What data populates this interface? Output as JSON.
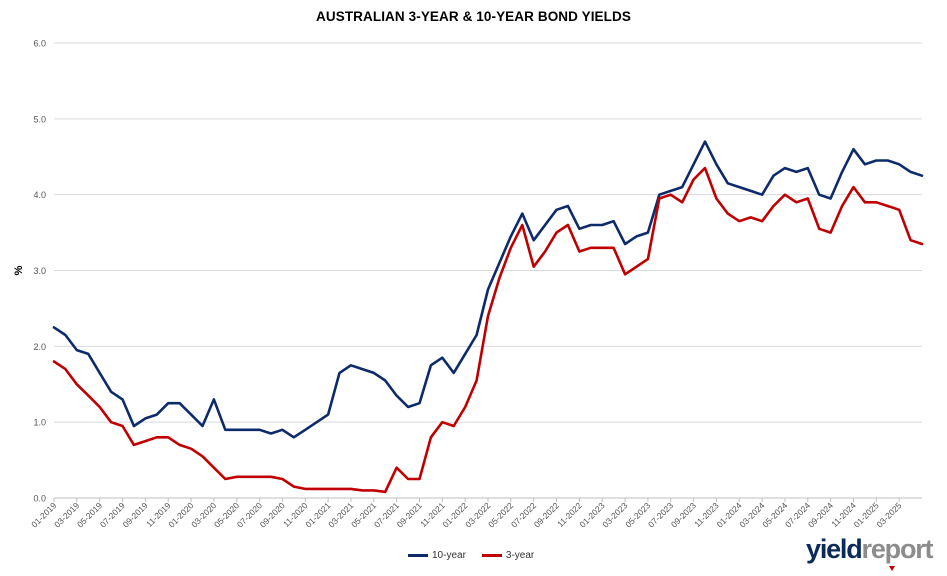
{
  "chart_data": {
    "type": "line",
    "title": "AUSTRALIAN 3-YEAR & 10-YEAR BOND YIELDS",
    "xlabel": "",
    "ylabel": "%",
    "ylim": [
      0,
      6
    ],
    "yticks": [
      "0.0",
      "1.0",
      "2.0",
      "3.0",
      "4.0",
      "5.0",
      "6.0"
    ],
    "xticks": [
      "01-2019",
      "03-2019",
      "05-2019",
      "07-2019",
      "09-2019",
      "11-2019",
      "01-2020",
      "03-2020",
      "05-2020",
      "07-2020",
      "09-2020",
      "11-2020",
      "01-2021",
      "03-2021",
      "05-2021",
      "07-2021",
      "09-2021",
      "11-2021",
      "01-2022",
      "03-2022",
      "05-2022",
      "07-2022",
      "09-2022",
      "11-2022",
      "01-2023",
      "03-2023",
      "05-2023",
      "07-2023",
      "09-2023",
      "11-2023",
      "01-2024",
      "03-2024",
      "05-2024",
      "07-2024",
      "09-2024",
      "11-2024",
      "01-2025",
      "03-2025"
    ],
    "grid": "horizontal",
    "legend_position": "bottom",
    "series": [
      {
        "name": "10-year",
        "color": "#0d2b6b",
        "x": [
          "2019-01",
          "2019-02",
          "2019-03",
          "2019-04",
          "2019-05",
          "2019-06",
          "2019-07",
          "2019-08",
          "2019-09",
          "2019-10",
          "2019-11",
          "2019-12",
          "2020-01",
          "2020-02",
          "2020-03",
          "2020-04",
          "2020-05",
          "2020-06",
          "2020-07",
          "2020-08",
          "2020-09",
          "2020-10",
          "2020-11",
          "2020-12",
          "2021-01",
          "2021-02",
          "2021-03",
          "2021-04",
          "2021-05",
          "2021-06",
          "2021-07",
          "2021-08",
          "2021-09",
          "2021-10",
          "2021-11",
          "2021-12",
          "2022-01",
          "2022-02",
          "2022-03",
          "2022-04",
          "2022-05",
          "2022-06",
          "2022-07",
          "2022-08",
          "2022-09",
          "2022-10",
          "2022-11",
          "2022-12",
          "2023-01",
          "2023-02",
          "2023-03",
          "2023-04",
          "2023-05",
          "2023-06",
          "2023-07",
          "2023-08",
          "2023-09",
          "2023-10",
          "2023-11",
          "2023-12",
          "2024-01",
          "2024-02",
          "2024-03",
          "2024-04",
          "2024-05",
          "2024-06",
          "2024-07",
          "2024-08",
          "2024-09",
          "2024-10",
          "2024-11",
          "2024-12",
          "2025-01",
          "2025-02",
          "2025-03",
          "2025-04",
          "2025-05"
        ],
        "y": [
          2.25,
          2.15,
          1.95,
          1.9,
          1.65,
          1.4,
          1.3,
          0.95,
          1.05,
          1.1,
          1.25,
          1.25,
          1.1,
          0.95,
          1.3,
          0.9,
          0.9,
          0.9,
          0.9,
          0.85,
          0.9,
          0.8,
          0.9,
          1.0,
          1.1,
          1.65,
          1.75,
          1.7,
          1.65,
          1.55,
          1.35,
          1.2,
          1.25,
          1.75,
          1.85,
          1.65,
          1.9,
          2.15,
          2.75,
          3.1,
          3.45,
          3.75,
          3.4,
          3.6,
          3.8,
          3.85,
          3.55,
          3.6,
          3.6,
          3.65,
          3.35,
          3.45,
          3.5,
          4.0,
          4.05,
          4.1,
          4.4,
          4.7,
          4.4,
          4.15,
          4.1,
          4.05,
          4.0,
          4.25,
          4.35,
          4.3,
          4.35,
          4.0,
          3.95,
          4.3,
          4.6,
          4.4,
          4.45,
          4.45,
          4.4,
          4.3,
          4.25
        ]
      },
      {
        "name": "3-year",
        "color": "#c00000",
        "x": [
          "2019-01",
          "2019-02",
          "2019-03",
          "2019-04",
          "2019-05",
          "2019-06",
          "2019-07",
          "2019-08",
          "2019-09",
          "2019-10",
          "2019-11",
          "2019-12",
          "2020-01",
          "2020-02",
          "2020-03",
          "2020-04",
          "2020-05",
          "2020-06",
          "2020-07",
          "2020-08",
          "2020-09",
          "2020-10",
          "2020-11",
          "2020-12",
          "2021-01",
          "2021-02",
          "2021-03",
          "2021-04",
          "2021-05",
          "2021-06",
          "2021-07",
          "2021-08",
          "2021-09",
          "2021-10",
          "2021-11",
          "2021-12",
          "2022-01",
          "2022-02",
          "2022-03",
          "2022-04",
          "2022-05",
          "2022-06",
          "2022-07",
          "2022-08",
          "2022-09",
          "2022-10",
          "2022-11",
          "2022-12",
          "2023-01",
          "2023-02",
          "2023-03",
          "2023-04",
          "2023-05",
          "2023-06",
          "2023-07",
          "2023-08",
          "2023-09",
          "2023-10",
          "2023-11",
          "2023-12",
          "2024-01",
          "2024-02",
          "2024-03",
          "2024-04",
          "2024-05",
          "2024-06",
          "2024-07",
          "2024-08",
          "2024-09",
          "2024-10",
          "2024-11",
          "2024-12",
          "2025-01",
          "2025-02",
          "2025-03",
          "2025-04",
          "2025-05"
        ],
        "y": [
          1.8,
          1.7,
          1.5,
          1.35,
          1.2,
          1.0,
          0.95,
          0.7,
          0.75,
          0.8,
          0.8,
          0.7,
          0.65,
          0.55,
          0.4,
          0.25,
          0.28,
          0.28,
          0.28,
          0.28,
          0.25,
          0.15,
          0.12,
          0.12,
          0.12,
          0.12,
          0.12,
          0.1,
          0.1,
          0.08,
          0.4,
          0.25,
          0.25,
          0.8,
          1.0,
          0.95,
          1.2,
          1.55,
          2.4,
          2.9,
          3.3,
          3.6,
          3.05,
          3.25,
          3.5,
          3.6,
          3.25,
          3.3,
          3.3,
          3.3,
          2.95,
          3.05,
          3.15,
          3.95,
          4.0,
          3.9,
          4.2,
          4.35,
          3.95,
          3.75,
          3.65,
          3.7,
          3.65,
          3.85,
          4.0,
          3.9,
          3.95,
          3.55,
          3.5,
          3.85,
          4.1,
          3.9,
          3.9,
          3.85,
          3.8,
          3.4,
          3.35
        ]
      }
    ]
  },
  "brand": {
    "part_a": "yield",
    "part_b": "report"
  }
}
